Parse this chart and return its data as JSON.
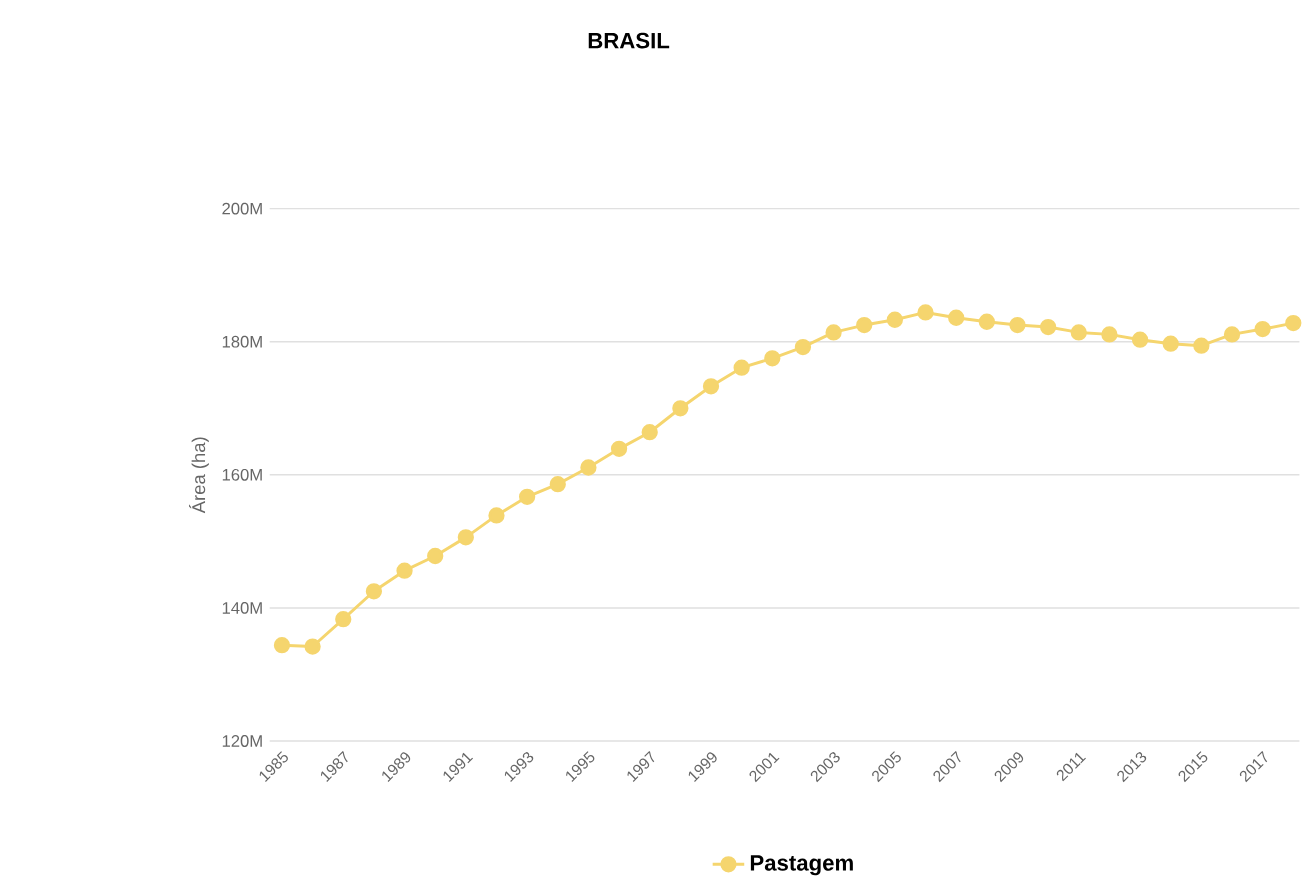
{
  "chart_data": {
    "type": "line",
    "title": "BRASIL",
    "ylabel": "Área (ha)",
    "categories": [
      "1985",
      null,
      "1987",
      null,
      "1989",
      null,
      "1991",
      null,
      "1993",
      null,
      "1995",
      null,
      "1997",
      null,
      "1999",
      null,
      "2001",
      null,
      "2003",
      null,
      "2005",
      null,
      "2007",
      null,
      "2009",
      null,
      "2011",
      null,
      "2013",
      null,
      "2015",
      null,
      "2017",
      null
    ],
    "series": [
      {
        "name": "Pastagem",
        "color": "#f5d56e",
        "values": [
          134400000,
          134200000,
          138300000,
          142500000,
          145600000,
          147800000,
          150600000,
          153900000,
          156700000,
          158600000,
          161100000,
          163900000,
          166400000,
          170000000,
          173300000,
          176100000,
          177500000,
          179200000,
          181400000,
          182500000,
          183300000,
          184400000,
          183600000,
          183000000,
          182500000,
          182200000,
          181400000,
          181100000,
          180300000,
          179700000,
          179400000,
          181100000,
          181900000,
          182800000
        ]
      }
    ],
    "ylim": [
      120000000,
      200000000
    ],
    "yticks": [
      {
        "value": 120000000,
        "label": "120M"
      },
      {
        "value": 140000000,
        "label": "140M"
      },
      {
        "value": 160000000,
        "label": "160M"
      },
      {
        "value": 180000000,
        "label": "180M"
      },
      {
        "value": 200000000,
        "label": "200M"
      }
    ],
    "grid": "y",
    "legend": "bottom",
    "marker": "circle",
    "line_style": "solid"
  }
}
